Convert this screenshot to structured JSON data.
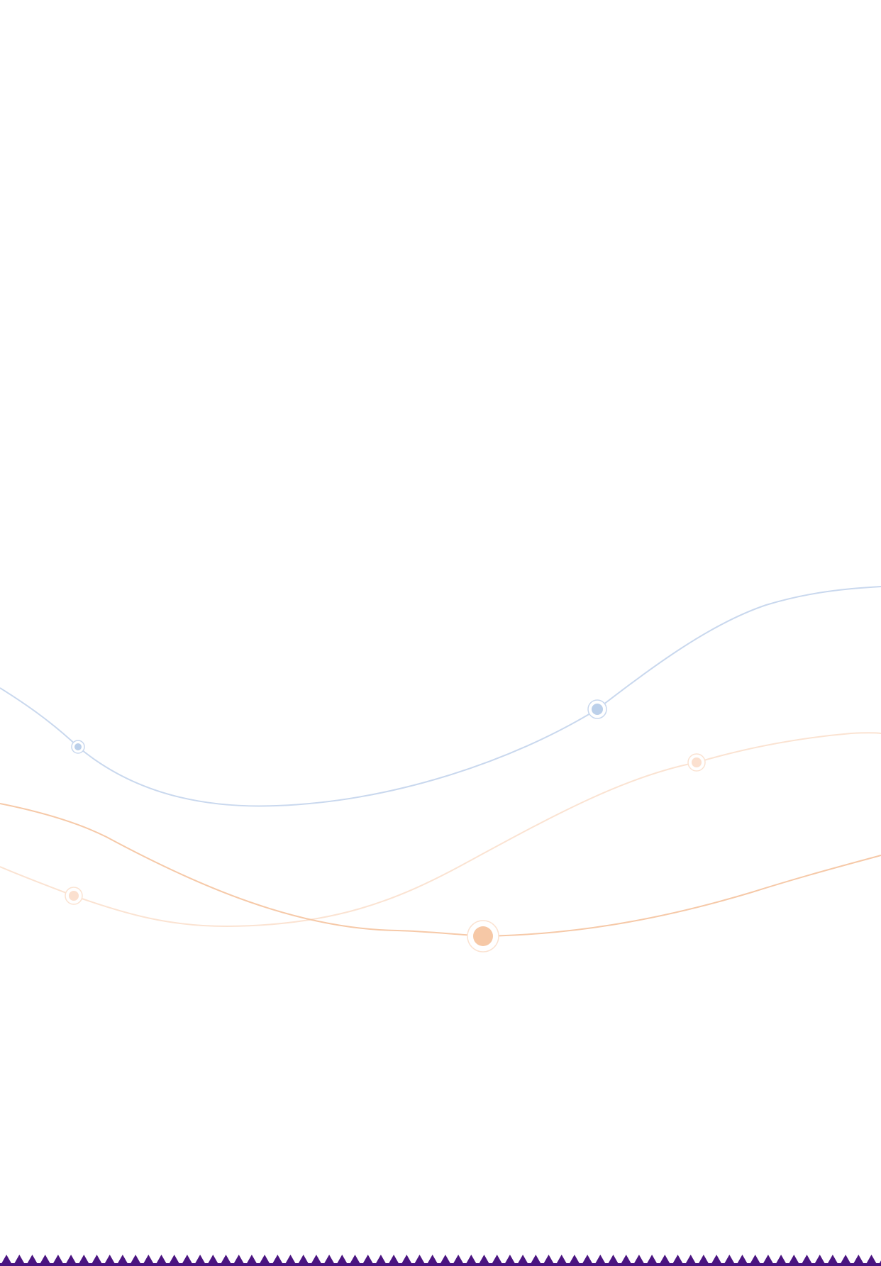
{
  "page": {
    "background_color": "#ffffff"
  },
  "decor": {
    "blue_line_color": "#c9d8ee",
    "blue_dot_color": "#bcd0ea",
    "peach_line_color": "#f6c9a8",
    "peach_faint_line_color": "#fbe3d2",
    "peach_dot_color": "#f6c8a6",
    "peach_faint_dot_color": "#fbe0cf",
    "border_color": "#4a1480"
  }
}
